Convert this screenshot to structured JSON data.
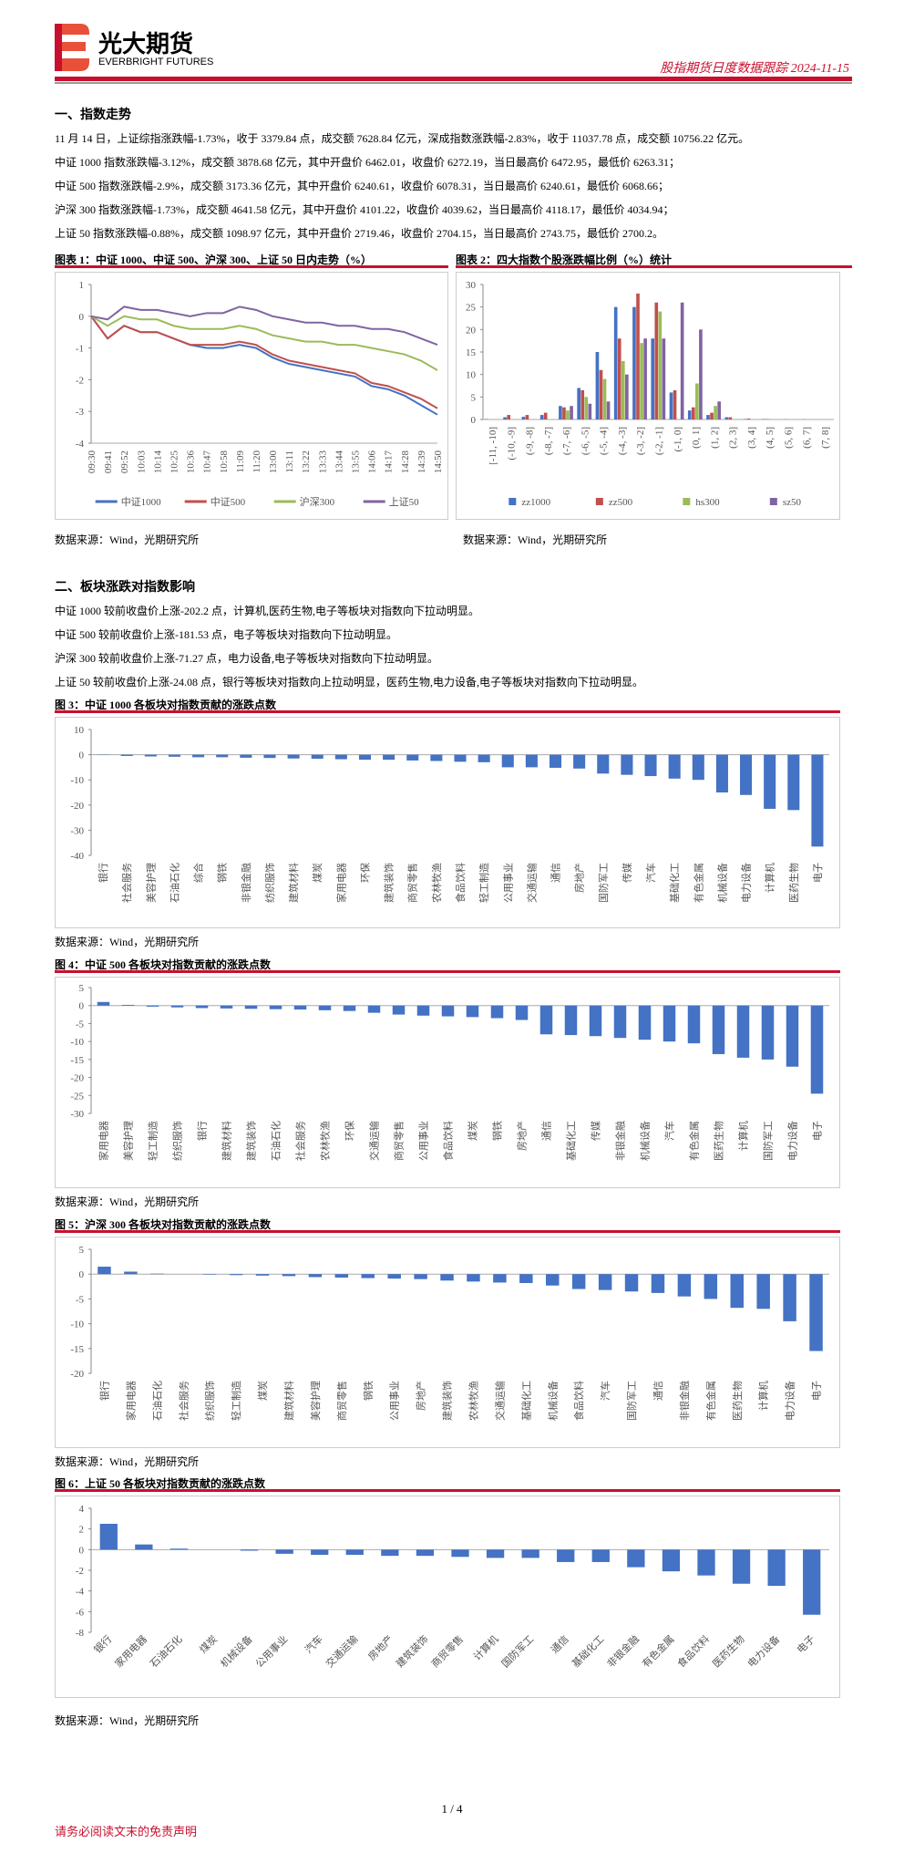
{
  "header": {
    "logo_cn": "光大期货",
    "logo_en": "EVERBRIGHT FUTURES",
    "report": "股指期货日度数据跟踪 2024-11-15"
  },
  "sections": [
    {
      "title": "一、指数走势",
      "paragraphs": [
        "11 月 14 日，上证综指涨跌幅-1.73%，收于 3379.84 点，成交额 7628.84 亿元，深成指数涨跌幅-2.83%，收于 11037.78 点，成交额 10756.22 亿元。",
        "中证 1000 指数涨跌幅-3.12%，成交额 3878.68 亿元，其中开盘价 6462.01，收盘价 6272.19，当日最高价 6472.95，最低价 6263.31；",
        "中证 500 指数涨跌幅-2.9%，成交额 3173.36 亿元，其中开盘价 6240.61，收盘价 6078.31，当日最高价 6240.61，最低价 6068.66；",
        "沪深 300 指数涨跌幅-1.73%，成交额 4641.58 亿元，其中开盘价 4101.22，收盘价 4039.62，当日最高价 4118.17，最低价 4034.94；",
        "上证 50 指数涨跌幅-0.88%，成交额 1098.97 亿元，其中开盘价 2719.46，收盘价 2704.15，当日最高价 2743.75，最低价 2700.2。"
      ]
    },
    {
      "title": "二、板块涨跌对指数影响",
      "paragraphs": [
        "中证 1000 较前收盘价上涨-202.2 点，计算机,医药生物,电子等板块对指数向下拉动明显。",
        "中证 500 较前收盘价上涨-181.53 点，电子等板块对指数向下拉动明显。",
        "沪深 300 较前收盘价上涨-71.27 点，电力设备,电子等板块对指数向下拉动明显。",
        "上证 50 较前收盘价上涨-24.08 点，银行等板块对指数向上拉动明显，医药生物,电力设备,电子等板块对指数向下拉动明显。"
      ]
    }
  ],
  "chart_data": [
    {
      "type": "line",
      "title": "图表 1：中证 1000、中证 500、沪深 300、上证 50 日内走势（%）",
      "source": "数据来源：Wind，光期研究所",
      "categories": [
        "09:30",
        "09:41",
        "09:52",
        "10:03",
        "10:14",
        "10:25",
        "10:36",
        "10:47",
        "10:58",
        "11:09",
        "11:20",
        "13:00",
        "13:11",
        "13:22",
        "13:33",
        "13:44",
        "13:55",
        "14:06",
        "14:17",
        "14:28",
        "14:39",
        "14:50"
      ],
      "series": [
        {
          "name": "中证1000",
          "color": "#4472c4",
          "values": [
            0,
            -0.7,
            -0.3,
            -0.5,
            -0.5,
            -0.7,
            -0.9,
            -1.0,
            -1.0,
            -0.9,
            -1.0,
            -1.3,
            -1.5,
            -1.6,
            -1.7,
            -1.8,
            -1.9,
            -2.2,
            -2.3,
            -2.5,
            -2.8,
            -3.1
          ]
        },
        {
          "name": "中证500",
          "color": "#c0504d",
          "values": [
            0,
            -0.7,
            -0.3,
            -0.5,
            -0.5,
            -0.7,
            -0.9,
            -0.9,
            -0.9,
            -0.8,
            -0.9,
            -1.2,
            -1.4,
            -1.5,
            -1.6,
            -1.7,
            -1.8,
            -2.1,
            -2.2,
            -2.4,
            -2.6,
            -2.9
          ]
        },
        {
          "name": "沪深300",
          "color": "#9bbb59",
          "values": [
            0,
            -0.3,
            0,
            -0.1,
            -0.1,
            -0.3,
            -0.4,
            -0.4,
            -0.4,
            -0.3,
            -0.4,
            -0.6,
            -0.7,
            -0.8,
            -0.8,
            -0.9,
            -0.9,
            -1.0,
            -1.1,
            -1.2,
            -1.4,
            -1.7
          ]
        },
        {
          "name": "上证50",
          "color": "#8064a2",
          "values": [
            0,
            -0.1,
            0.3,
            0.2,
            0.2,
            0.1,
            0,
            0.1,
            0.1,
            0.3,
            0.2,
            0,
            -0.1,
            -0.2,
            -0.2,
            -0.3,
            -0.3,
            -0.4,
            -0.4,
            -0.5,
            -0.7,
            -0.9
          ]
        }
      ],
      "ylim": [
        -4,
        1
      ],
      "yticks": [
        1,
        0,
        -1,
        -2,
        -3,
        -4
      ],
      "legend": "bottom"
    },
    {
      "type": "bar",
      "title": "图表 2：四大指数个股涨跌幅比例（%）统计",
      "source": "数据来源：Wind，光期研究所",
      "categories": [
        "[-11, -10]",
        "(-10, -9]",
        "(-9, -8]",
        "(-8, -7]",
        "(-7, -6]",
        "(-6, -5]",
        "(-5, -4]",
        "(-4, -3]",
        "(-3, -2]",
        "(-2, -1]",
        "(-1, 0]",
        "(0, 1]",
        "(1, 2]",
        "(2, 3]",
        "(3, 4]",
        "(4, 5]",
        "(5, 6]",
        "(6, 7]",
        "(7, 8]"
      ],
      "series": [
        {
          "name": "zz1000",
          "color": "#4472c4",
          "values": [
            0.1,
            0.5,
            0.6,
            1,
            3,
            7,
            15,
            25,
            25,
            18,
            6,
            2,
            1,
            0.5,
            0.1,
            0.1,
            0,
            0,
            0
          ]
        },
        {
          "name": "zz500",
          "color": "#c0504d",
          "values": [
            0,
            1,
            1,
            1.5,
            2.7,
            6.5,
            11,
            18,
            28,
            26,
            6.5,
            2.7,
            1.5,
            0.5,
            0.2,
            0.1,
            0.05,
            0.05,
            0
          ]
        },
        {
          "name": "hs300",
          "color": "#9bbb59",
          "values": [
            0,
            0,
            0,
            0,
            2,
            5,
            9,
            13,
            17,
            24,
            0,
            8,
            3,
            0,
            0,
            0,
            0,
            0,
            0
          ]
        },
        {
          "name": "sz50",
          "color": "#8064a2",
          "values": [
            0,
            0,
            0,
            0,
            3,
            3.5,
            4,
            10,
            18,
            18,
            26,
            20,
            4,
            0,
            0,
            0,
            0,
            0,
            0
          ]
        }
      ],
      "ylim": [
        0,
        30
      ],
      "yticks": [
        0,
        5,
        10,
        15,
        20,
        25,
        30
      ],
      "legend": "bottom"
    },
    {
      "type": "bar",
      "title": "图 3：中证 1000 各板块对指数贡献的涨跌点数",
      "source": "数据来源：Wind，光期研究所",
      "color": "#4472c4",
      "categories": [
        "银行",
        "社会服务",
        "美容护理",
        "石油石化",
        "综合",
        "钢铁",
        "非银金融",
        "纺织服饰",
        "建筑材料",
        "煤炭",
        "家用电器",
        "环保",
        "建筑装饰",
        "商贸零售",
        "农林牧渔",
        "食品饮料",
        "轻工制造",
        "公用事业",
        "交通运输",
        "通信",
        "房地产",
        "国防军工",
        "传媒",
        "汽车",
        "基础化工",
        "有色金属",
        "机械设备",
        "电力设备",
        "计算机",
        "医药生物",
        "电子"
      ],
      "values": [
        0.1,
        -0.5,
        -0.7,
        -0.8,
        -1,
        -1,
        -1.2,
        -1.3,
        -1.5,
        -1.6,
        -1.8,
        -2,
        -2,
        -2.3,
        -2.5,
        -2.8,
        -3,
        -5,
        -5,
        -5.2,
        -5.5,
        -7.5,
        -8,
        -8.5,
        -9.5,
        -10,
        -15,
        -16,
        -21.5,
        -22,
        -36.5
      ],
      "ylim": [
        -40,
        10
      ],
      "yticks": [
        10,
        0,
        -10,
        -20,
        -30,
        -40
      ]
    },
    {
      "type": "bar",
      "title": "图 4：中证 500 各板块对指数贡献的涨跌点数",
      "source": "数据来源：Wind，光期研究所",
      "color": "#4472c4",
      "categories": [
        "家用电器",
        "美容护理",
        "轻工制造",
        "纺织服饰",
        "银行",
        "建筑材料",
        "建筑装饰",
        "石油石化",
        "社会服务",
        "农林牧渔",
        "环保",
        "交通运输",
        "商贸零售",
        "公用事业",
        "食品饮料",
        "煤炭",
        "钢铁",
        "房地产",
        "通信",
        "基础化工",
        "传媒",
        "非银金融",
        "机械设备",
        "汽车",
        "有色金属",
        "医药生物",
        "计算机",
        "国防军工",
        "电力设备",
        "电子"
      ],
      "values": [
        1,
        0.2,
        -0.3,
        -0.5,
        -0.7,
        -0.8,
        -0.9,
        -1,
        -1.1,
        -1.3,
        -1.5,
        -2,
        -2.5,
        -2.8,
        -3,
        -3.2,
        -3.5,
        -4,
        -8,
        -8.2,
        -8.5,
        -9,
        -9.5,
        -10,
        -10.5,
        -13.5,
        -14.5,
        -15,
        -17,
        -24.5
      ],
      "ylim": [
        -30,
        5
      ],
      "yticks": [
        5,
        0,
        -5,
        -10,
        -15,
        -20,
        -25,
        -30
      ]
    },
    {
      "type": "bar",
      "title": "图 5：沪深 300 各板块对指数贡献的涨跌点数",
      "source": "数据来源：Wind，光期研究所",
      "color": "#4472c4",
      "categories": [
        "银行",
        "家用电器",
        "石油石化",
        "社会服务",
        "纺织服饰",
        "轻工制造",
        "煤炭",
        "建筑材料",
        "美容护理",
        "商贸零售",
        "钢铁",
        "公用事业",
        "房地产",
        "建筑装饰",
        "农林牧渔",
        "交通运输",
        "基础化工",
        "机械设备",
        "食品饮料",
        "汽车",
        "国防军工",
        "通信",
        "非银金融",
        "有色金属",
        "医药生物",
        "计算机",
        "电力设备",
        "电子"
      ],
      "values": [
        1.5,
        0.5,
        0.1,
        0,
        -0.1,
        -0.2,
        -0.3,
        -0.4,
        -0.6,
        -0.7,
        -0.8,
        -0.9,
        -1,
        -1.3,
        -1.5,
        -1.7,
        -1.8,
        -2.3,
        -3,
        -3.2,
        -3.5,
        -3.8,
        -4.5,
        -5,
        -6.8,
        -7,
        -9.5,
        -15.5
      ],
      "ylim": [
        -20,
        5
      ],
      "yticks": [
        5,
        0,
        -5,
        -10,
        -15,
        -20
      ]
    },
    {
      "type": "bar",
      "title": "图 6：上证 50 各板块对指数贡献的涨跌点数",
      "source": "数据来源：Wind，光期研究所",
      "color": "#4472c4",
      "categories": [
        "银行",
        "家用电器",
        "石油石化",
        "煤炭",
        "机械设备",
        "公用事业",
        "汽车",
        "交通运输",
        "房地产",
        "建筑装饰",
        "商贸零售",
        "计算机",
        "国防军工",
        "通信",
        "基础化工",
        "非银金融",
        "有色金属",
        "食品饮料",
        "医药生物",
        "电力设备",
        "电子"
      ],
      "values": [
        2.5,
        0.5,
        0.1,
        0,
        -0.1,
        -0.4,
        -0.5,
        -0.5,
        -0.6,
        -0.6,
        -0.7,
        -0.8,
        -0.8,
        -1.2,
        -1.2,
        -1.7,
        -2.1,
        -2.5,
        -3.3,
        -3.5,
        -6.3
      ],
      "ylim": [
        -8,
        4
      ],
      "yticks": [
        4,
        2,
        0,
        -2,
        -4,
        -6,
        -8
      ]
    }
  ],
  "footer": {
    "page": "1 / 4",
    "disclaimer": "请务必阅读文末的免责声明"
  }
}
